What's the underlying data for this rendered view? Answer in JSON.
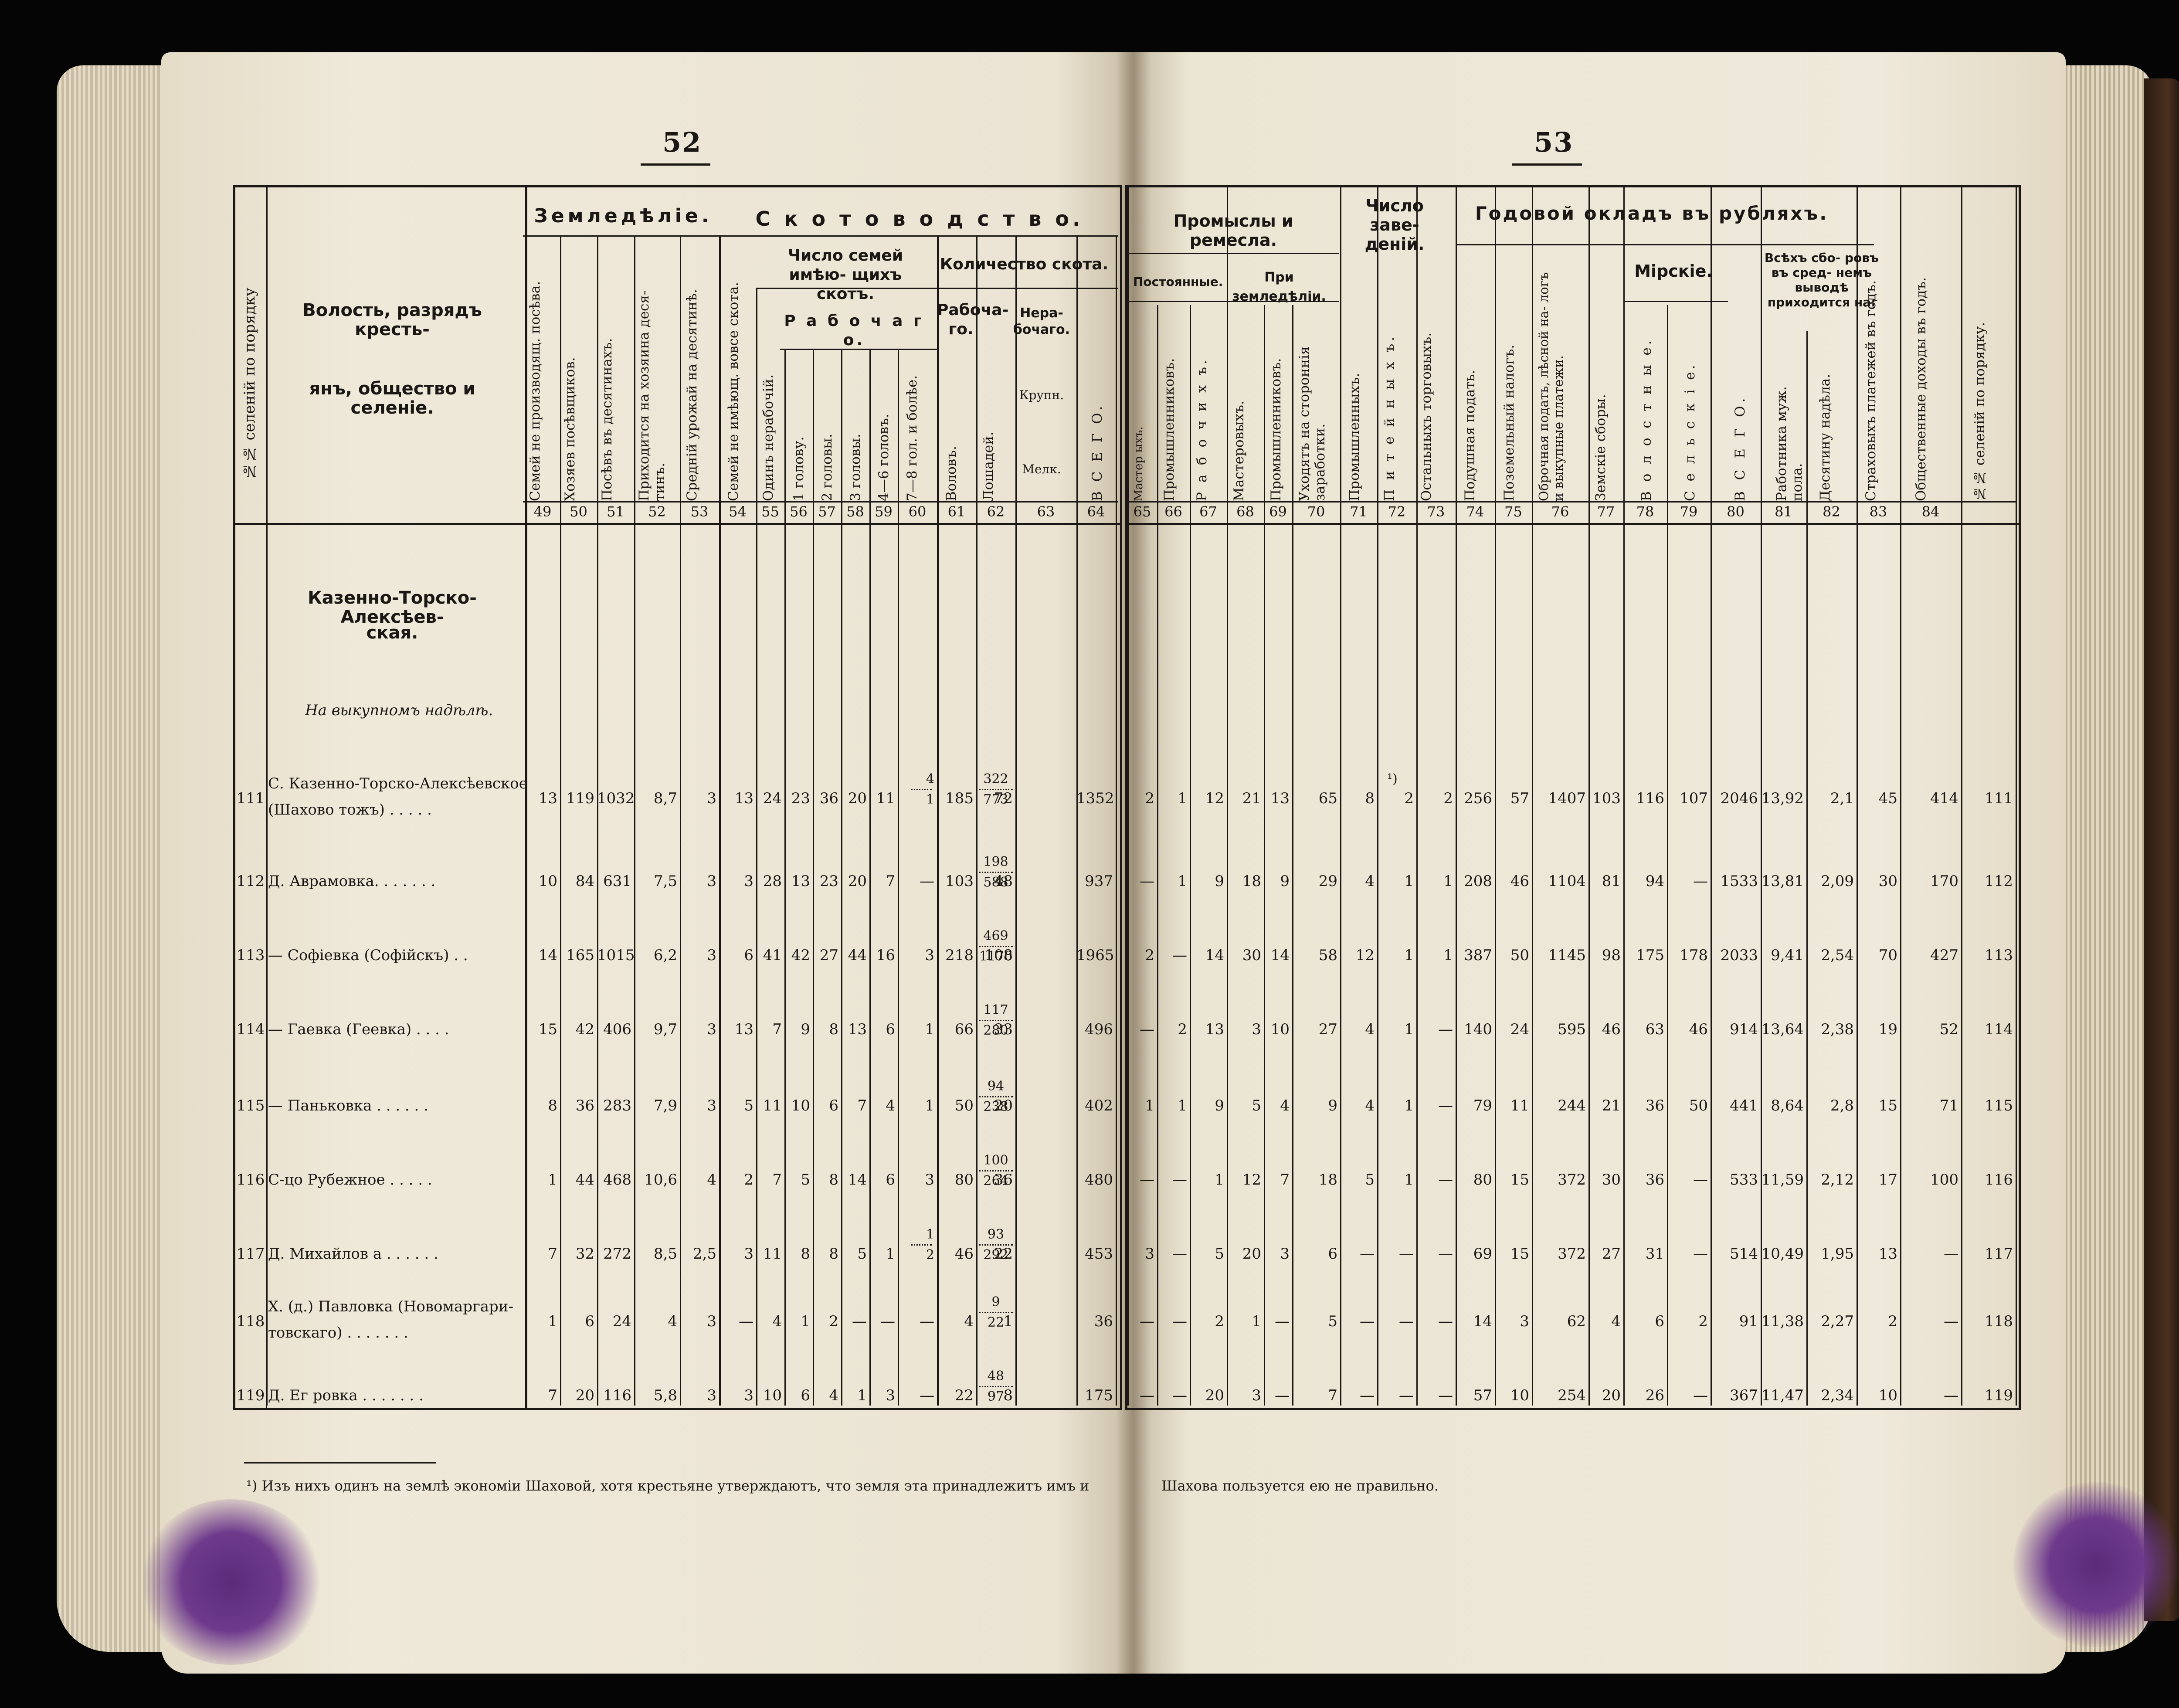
{
  "pages": {
    "left_number": "52",
    "right_number": "53"
  },
  "headers": {
    "order_col": "№№ селеній по порядку",
    "region_col_line1": "Волость, разрядъ кресть-",
    "region_col_line2": "янъ, общество и селеніе.",
    "agriculture": "Земледѣліе.",
    "cattle": "С к о т о в о д с т в о.",
    "families_with_cattle": "Число семей имѣю- щихъ скотъ.",
    "working": "Р а б о ч а г о.",
    "cattle_amount": "Количество скота.",
    "working_short": "Рабоча- го.",
    "nonworking": "Нера- бочаго.",
    "crafts": "Промыслы и ремесла.",
    "permanent": "Постоянные.",
    "with_farming": "При земледѣліи.",
    "establishments": "Число заве- деній.",
    "annual_salary": "Годовой окладъ въ рубляхъ.",
    "mirskie": "Мірскіе.",
    "all_fees": "Всѣхъ сбо- ровъ въ сред- немъ выводѣ приходится на:",
    "cols": {
      "49": "Семей не производящ. посѣва.",
      "50": "Хозяев посѣвщиков.",
      "51": "Посѣвъ въ десятинахъ.",
      "52": "Приходится на хозяина деся- тинъ.",
      "53": "Средній урожай на десятинѣ.",
      "54": "Семей не имѣющ. вовсе скота.",
      "55": "Одинъ нерабочій.",
      "56": "1 голову.",
      "57": "2 головы.",
      "58": "3 головы.",
      "59": "4—6 головъ.",
      "60": "7—8 гол. и болѣе.",
      "61": "Воловъ.",
      "62": "Лошадей.",
      "63a": "Крупн.",
      "63b": "Мелк.",
      "64": "В С Е Г О.",
      "65": "Мастер ыхъ.",
      "66": "Промышленниковъ.",
      "67": "Р а б о ч и х ъ.",
      "68": "Мастеровыхъ.",
      "69": "Промышленниковъ.",
      "70": "Уходятъ на стороннія заработки.",
      "71": "Промышленныхъ.",
      "72": "П и т е й н ы х ъ.",
      "73": "Остальныхъ торговыхъ.",
      "74": "Подушная подать.",
      "75": "Поземельный налогъ.",
      "76": "Оброчная подать, лѣсной на- логъ и выкупные платежи.",
      "77": "Земскіе сборы.",
      "78": "В о л о с т н ы е.",
      "79": "С е л ь с к і е.",
      "80": "В С Е Г О.",
      "81": "Работника муж. пола.",
      "82": "Десятину надѣла.",
      "83": "Страховыхъ платежей въ годъ.",
      "84": "Общественные доходы въ годъ.",
      "85": "№№ селеній по порядку."
    },
    "col_numbers_left": [
      "49",
      "50",
      "51",
      "52",
      "53",
      "54",
      "55",
      "56",
      "57",
      "58",
      "59",
      "60",
      "61",
      "62",
      "63",
      "64"
    ],
    "col_numbers_right": [
      "65",
      "66",
      "67",
      "68",
      "69",
      "70",
      "71",
      "72",
      "73",
      "74",
      "75",
      "76",
      "77",
      "78",
      "79",
      "80",
      "81",
      "82",
      "83",
      "84"
    ]
  },
  "section": {
    "volost_line1": "Казенно-Торско-Алексѣев-",
    "volost_line2": "ская.",
    "subheading": "На выкупномъ надѣлѣ."
  },
  "rows": [
    {
      "no": "111",
      "name1": "С. Казенно-Торско-Алексѣевское",
      "name2": "(Шахово тожъ) . . . . .",
      "l": [
        "13",
        "119",
        "1032",
        "8,7",
        "3",
        "13",
        "24",
        "23",
        "36",
        "20",
        "11",
        "4/1",
        "185",
        "72",
        "322",
        "773",
        "1352"
      ],
      "r": [
        "2",
        "1",
        "12",
        "21",
        "13",
        "65",
        "8",
        "2",
        "2",
        "256",
        "57",
        "1407",
        "103",
        "116",
        "107",
        "2046",
        "13,92",
        "2,1",
        "45",
        "414",
        "111"
      ]
    },
    {
      "no": "112",
      "name1": "Д. Аврамовка. . . . . . .",
      "name2": "",
      "l": [
        "10",
        "84",
        "631",
        "7,5",
        "3",
        "3",
        "28",
        "13",
        "23",
        "20",
        "7",
        "—",
        "103",
        "48",
        "198",
        "588",
        "937"
      ],
      "r": [
        "—",
        "1",
        "9",
        "18",
        "9",
        "29",
        "4",
        "1",
        "1",
        "208",
        "46",
        "1104",
        "81",
        "94",
        "—",
        "1533",
        "13,81",
        "2,09",
        "30",
        "170",
        "112"
      ]
    },
    {
      "no": "113",
      "name1": "— Софіевка (Софійскъ) . .",
      "name2": "",
      "l": [
        "14",
        "165",
        "1015",
        "6,2",
        "3",
        "6",
        "41",
        "42",
        "27",
        "44",
        "16",
        "3",
        "218",
        "108",
        "469",
        "1170",
        "1965"
      ],
      "r": [
        "2",
        "—",
        "14",
        "30",
        "14",
        "58",
        "12",
        "1",
        "1",
        "387",
        "50",
        "1145",
        "98",
        "175",
        "178",
        "2033",
        "9,41",
        "2,54",
        "70",
        "427",
        "113"
      ]
    },
    {
      "no": "114",
      "name1": "— Гаевка (Геевка) . . . .",
      "name2": "",
      "l": [
        "15",
        "42",
        "406",
        "9,7",
        "3",
        "13",
        "7",
        "9",
        "8",
        "13",
        "6",
        "1",
        "66",
        "33",
        "117",
        "280",
        "496"
      ],
      "r": [
        "—",
        "2",
        "13",
        "3",
        "10",
        "27",
        "4",
        "1",
        "—",
        "140",
        "24",
        "595",
        "46",
        "63",
        "46",
        "914",
        "13,64",
        "2,38",
        "19",
        "52",
        "114"
      ]
    },
    {
      "no": "115",
      "name1": "— Паньковка . . . . . .",
      "name2": "",
      "l": [
        "8",
        "36",
        "283",
        "7,9",
        "3",
        "5",
        "11",
        "10",
        "6",
        "7",
        "4",
        "1",
        "50",
        "20",
        "94",
        "238",
        "402"
      ],
      "r": [
        "1",
        "1",
        "9",
        "5",
        "4",
        "9",
        "4",
        "1",
        "—",
        "79",
        "11",
        "244",
        "21",
        "36",
        "50",
        "441",
        "8,64",
        "2,8",
        "15",
        "71",
        "115"
      ]
    },
    {
      "no": "116",
      "name1": "С-цо Рубежное . . . . .",
      "name2": "",
      "l": [
        "1",
        "44",
        "468",
        "10,6",
        "4",
        "2",
        "7",
        "5",
        "8",
        "14",
        "6",
        "3",
        "80",
        "36",
        "100",
        "264",
        "480"
      ],
      "r": [
        "—",
        "—",
        "1",
        "12",
        "7",
        "18",
        "5",
        "1",
        "—",
        "80",
        "15",
        "372",
        "30",
        "36",
        "—",
        "533",
        "11,59",
        "2,12",
        "17",
        "100",
        "116"
      ]
    },
    {
      "no": "117",
      "name1": "Д. Михайлов а . . . . . .",
      "name2": "",
      "l": [
        "7",
        "32",
        "272",
        "8,5",
        "2,5",
        "3",
        "11",
        "8",
        "8",
        "5",
        "1",
        "1/2",
        "46",
        "22",
        "93",
        "292",
        "453"
      ],
      "r": [
        "3",
        "—",
        "5",
        "20",
        "3",
        "6",
        "—",
        "—",
        "—",
        "69",
        "15",
        "372",
        "27",
        "31",
        "—",
        "514",
        "10,49",
        "1,95",
        "13",
        "—",
        "117"
      ]
    },
    {
      "no": "118",
      "name1": "Х. (д.) Павловка (Новомаргари-",
      "name2": "товскаго) . . . . . . .",
      "l": [
        "1",
        "6",
        "24",
        "4",
        "3",
        "—",
        "4",
        "1",
        "2",
        "—",
        "—",
        "—",
        "4",
        "1",
        "9",
        "22",
        "36"
      ],
      "r": [
        "—",
        "—",
        "2",
        "1",
        "—",
        "5",
        "—",
        "—",
        "—",
        "14",
        "3",
        "62",
        "4",
        "6",
        "2",
        "91",
        "11,38",
        "2,27",
        "2",
        "—",
        "118"
      ]
    },
    {
      "no": "119",
      "name1": "Д. Ег ровка . . . . . . .",
      "name2": "",
      "l": [
        "7",
        "20",
        "116",
        "5,8",
        "3",
        "3",
        "10",
        "6",
        "4",
        "1",
        "3",
        "—",
        "22",
        "8",
        "48",
        "97",
        "175"
      ],
      "r": [
        "—",
        "—",
        "20",
        "3",
        "—",
        "7",
        "—",
        "—",
        "—",
        "57",
        "10",
        "254",
        "20",
        "26",
        "—",
        "367",
        "11,47",
        "2,34",
        "10",
        "—",
        "119"
      ]
    }
  ],
  "footnote_marker": "¹)",
  "footnote_left": "¹) Изъ нихъ одинъ на землѣ экономіи Шаховой, хотя крестьяне утверждаютъ, что земля эта принадлежитъ имъ и",
  "footnote_right": "Шахова пользуется ею не правильно."
}
